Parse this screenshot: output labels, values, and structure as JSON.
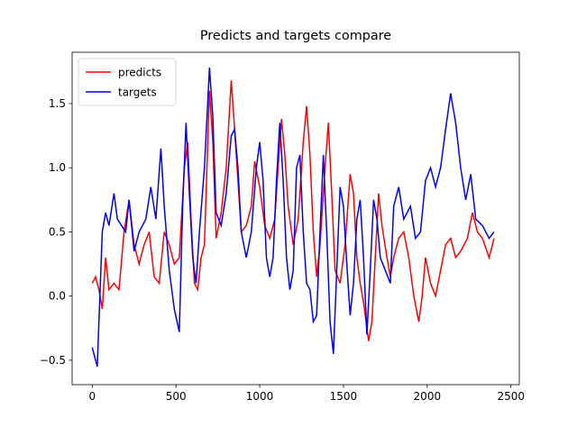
{
  "chart_data": {
    "type": "line",
    "title": "Predicts and targets compare",
    "xlim": [
      -120,
      2550
    ],
    "ylim": [
      -0.69,
      1.9
    ],
    "xticks": [
      0,
      500,
      1000,
      1500,
      2000,
      2500
    ],
    "yticks": [
      {
        "value": -0.5,
        "label": "−0.5"
      },
      {
        "value": 0,
        "label": "0.0"
      },
      0.5,
      {
        "value": 1,
        "label": "1.0"
      },
      1.5
    ],
    "legend": "upper left",
    "series": [
      {
        "name": "predicts",
        "color": "#ff0000",
        "x": [
          0,
          20,
          40,
          60,
          80,
          100,
          130,
          160,
          190,
          220,
          250,
          280,
          310,
          340,
          370,
          400,
          430,
          460,
          490,
          520,
          550,
          570,
          590,
          610,
          630,
          650,
          670,
          700,
          720,
          740,
          770,
          800,
          830,
          850,
          870,
          890,
          920,
          950,
          970,
          1000,
          1030,
          1060,
          1090,
          1110,
          1130,
          1150,
          1170,
          1200,
          1230,
          1260,
          1280,
          1300,
          1320,
          1340,
          1360,
          1390,
          1410,
          1430,
          1450,
          1480,
          1510,
          1540,
          1560,
          1580,
          1600,
          1620,
          1650,
          1670,
          1690,
          1710,
          1730,
          1760,
          1780,
          1800,
          1830,
          1860,
          1890,
          1920,
          1950,
          1970,
          1990,
          2020,
          2050,
          2080,
          2110,
          2140,
          2170,
          2200,
          2240,
          2270,
          2300,
          2330,
          2370,
          2399
        ],
        "values": [
          0.1,
          0.15,
          0.05,
          -0.1,
          0.3,
          0.05,
          0.1,
          0.05,
          0.5,
          0.75,
          0.4,
          0.25,
          0.4,
          0.5,
          0.15,
          0.1,
          0.5,
          0.4,
          0.25,
          0.3,
          1.0,
          1.2,
          0.6,
          0.1,
          0.05,
          0.3,
          0.4,
          1.6,
          1.2,
          0.45,
          0.65,
          1.0,
          1.68,
          1.3,
          0.9,
          0.5,
          0.55,
          0.7,
          1.05,
          0.85,
          0.55,
          0.45,
          0.6,
          1.0,
          1.38,
          1.1,
          0.7,
          0.4,
          0.6,
          1.2,
          1.48,
          1.1,
          0.5,
          0.15,
          0.4,
          1.0,
          1.35,
          0.8,
          0.2,
          0.1,
          0.4,
          0.95,
          0.8,
          0.3,
          0.1,
          -0.05,
          -0.35,
          -0.2,
          0.3,
          0.8,
          0.55,
          0.3,
          0.15,
          0.3,
          0.45,
          0.5,
          0.3,
          0.0,
          -0.2,
          0.0,
          0.3,
          0.1,
          0.0,
          0.2,
          0.4,
          0.45,
          0.3,
          0.35,
          0.45,
          0.65,
          0.5,
          0.45,
          0.3,
          0.45
        ]
      },
      {
        "name": "targets",
        "color": "#0000ff",
        "x": [
          0,
          30,
          60,
          80,
          100,
          130,
          150,
          200,
          220,
          250,
          280,
          320,
          350,
          380,
          410,
          430,
          460,
          490,
          520,
          540,
          560,
          580,
          600,
          620,
          640,
          670,
          700,
          720,
          740,
          770,
          800,
          830,
          850,
          870,
          890,
          920,
          950,
          980,
          1000,
          1020,
          1040,
          1060,
          1080,
          1100,
          1120,
          1140,
          1160,
          1180,
          1200,
          1220,
          1240,
          1260,
          1280,
          1300,
          1320,
          1340,
          1360,
          1380,
          1400,
          1420,
          1440,
          1460,
          1480,
          1500,
          1520,
          1540,
          1560,
          1580,
          1600,
          1620,
          1640,
          1660,
          1680,
          1700,
          1720,
          1750,
          1780,
          1800,
          1830,
          1860,
          1900,
          1930,
          1960,
          1990,
          2020,
          2050,
          2080,
          2110,
          2140,
          2170,
          2200,
          2230,
          2260,
          2290,
          2330,
          2370,
          2399
        ],
        "values": [
          -0.4,
          -0.55,
          0.5,
          0.65,
          0.55,
          0.8,
          0.6,
          0.5,
          0.75,
          0.35,
          0.5,
          0.6,
          0.85,
          0.6,
          1.15,
          0.7,
          0.2,
          -0.1,
          -0.28,
          0.7,
          1.35,
          0.8,
          0.3,
          0.1,
          0.5,
          1.0,
          1.78,
          1.4,
          0.65,
          0.55,
          0.8,
          1.25,
          1.3,
          1.0,
          0.5,
          0.3,
          0.5,
          1.0,
          1.2,
          0.9,
          0.3,
          0.15,
          0.3,
          0.9,
          1.35,
          0.9,
          0.3,
          0.05,
          0.2,
          1.0,
          1.1,
          0.5,
          0.1,
          0.05,
          -0.2,
          -0.15,
          0.5,
          1.1,
          0.5,
          -0.2,
          -0.45,
          0.2,
          0.85,
          0.7,
          0.25,
          -0.15,
          0.1,
          0.6,
          0.75,
          0.3,
          -0.3,
          0.2,
          0.75,
          0.6,
          0.3,
          0.2,
          0.1,
          0.7,
          0.85,
          0.6,
          0.7,
          0.45,
          0.5,
          0.9,
          1.0,
          0.85,
          1.0,
          1.3,
          1.58,
          1.35,
          1.0,
          0.75,
          0.95,
          0.6,
          0.55,
          0.45,
          0.5
        ]
      }
    ]
  }
}
